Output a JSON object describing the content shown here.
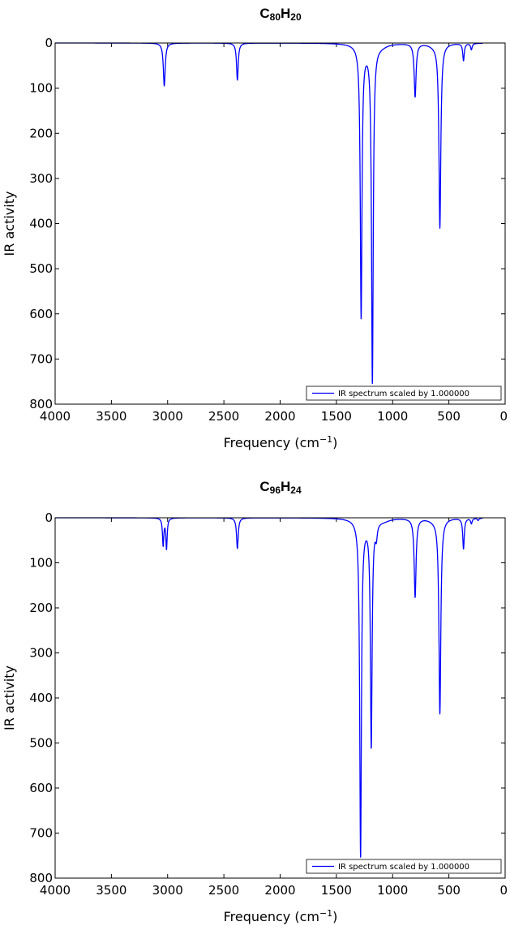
{
  "style": {
    "line_color": "#0000ff",
    "frame_color": "#000000",
    "background": "#ffffff"
  },
  "chart_data": [
    {
      "type": "line",
      "title": {
        "base1": "C",
        "sub1": "80",
        "base2": "H",
        "sub2": "20"
      },
      "xlabel": {
        "main": "Frequency (cm",
        "sup": "−1",
        "tail": ")"
      },
      "ylabel": "IR activity",
      "xlim": [
        4000,
        0
      ],
      "ylim": [
        0,
        800
      ],
      "y_inverted": true,
      "grid": false,
      "x_ticks": [
        4000,
        3500,
        3000,
        2500,
        2000,
        1500,
        1000,
        500,
        0
      ],
      "y_ticks": [
        0,
        100,
        200,
        300,
        400,
        500,
        600,
        700,
        800
      ],
      "legend": {
        "position": "bottom-right",
        "entries": [
          "IR spectrum scaled by 1.000000"
        ]
      },
      "x_range_plotted": [
        4000,
        200
      ],
      "series": [
        {
          "peaks": [
            {
              "x": 3030,
              "y": 95,
              "w": 10
            },
            {
              "x": 2380,
              "y": 82,
              "w": 9
            },
            {
              "x": 1280,
              "y": 600,
              "w": 9
            },
            {
              "x": 1245,
              "y": 8,
              "w": 60
            },
            {
              "x": 1180,
              "y": 745,
              "w": 9
            },
            {
              "x": 1100,
              "y": 5,
              "w": 60
            },
            {
              "x": 800,
              "y": 118,
              "w": 10
            },
            {
              "x": 580,
              "y": 408,
              "w": 10
            },
            {
              "x": 640,
              "y": 4,
              "w": 50
            },
            {
              "x": 370,
              "y": 38,
              "w": 8
            },
            {
              "x": 300,
              "y": 14,
              "w": 8
            }
          ]
        }
      ]
    },
    {
      "type": "line",
      "title": {
        "base1": "C",
        "sub1": "96",
        "base2": "H",
        "sub2": "24"
      },
      "xlabel": {
        "main": "Frequency (cm",
        "sup": "−1",
        "tail": ")"
      },
      "ylabel": "IR activity",
      "xlim": [
        4000,
        0
      ],
      "ylim": [
        0,
        800
      ],
      "y_inverted": true,
      "grid": false,
      "x_ticks": [
        4000,
        3500,
        3000,
        2500,
        2000,
        1500,
        1000,
        500,
        0
      ],
      "y_ticks": [
        0,
        100,
        200,
        300,
        400,
        500,
        600,
        700,
        800
      ],
      "legend": {
        "position": "bottom-right",
        "entries": [
          "IR spectrum scaled by 1.000000"
        ]
      },
      "x_range_plotted": [
        4000,
        200
      ],
      "series": [
        {
          "peaks": [
            {
              "x": 3040,
              "y": 60,
              "w": 7
            },
            {
              "x": 3010,
              "y": 68,
              "w": 7
            },
            {
              "x": 2380,
              "y": 68,
              "w": 9
            },
            {
              "x": 1285,
              "y": 745,
              "w": 9
            },
            {
              "x": 1250,
              "y": 8,
              "w": 60
            },
            {
              "x": 1190,
              "y": 500,
              "w": 9
            },
            {
              "x": 1145,
              "y": 30,
              "w": 10
            },
            {
              "x": 1080,
              "y": 5,
              "w": 60
            },
            {
              "x": 800,
              "y": 175,
              "w": 10
            },
            {
              "x": 580,
              "y": 433,
              "w": 10
            },
            {
              "x": 640,
              "y": 4,
              "w": 50
            },
            {
              "x": 370,
              "y": 68,
              "w": 8
            },
            {
              "x": 300,
              "y": 12,
              "w": 8
            },
            {
              "x": 240,
              "y": 5,
              "w": 8
            }
          ]
        }
      ]
    }
  ]
}
